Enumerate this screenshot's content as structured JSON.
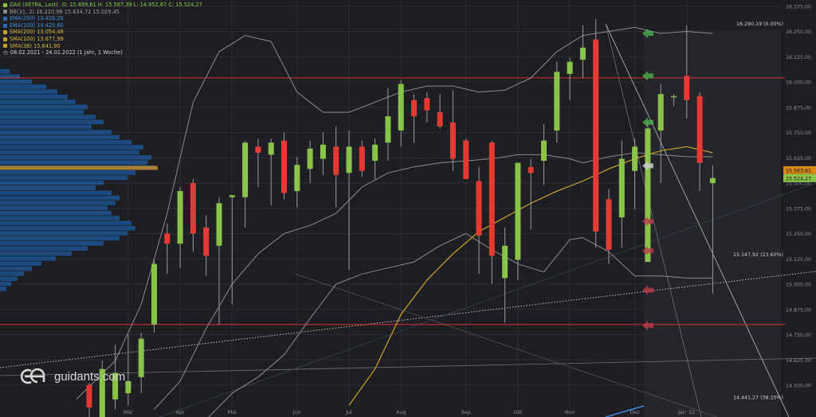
{
  "colors": {
    "background": "#1e1f23",
    "up": "#8bc34a",
    "down": "#e53935",
    "bollinger": "#8a8a8a",
    "sma200": "#c9a227",
    "grid": "#2c2e33",
    "resistance": "#d32f2f",
    "volume_profile": "#1e5aa0",
    "poc": "#b8862b"
  },
  "legend": {
    "title": "DAX (XETRA, Last)",
    "ohlc": "O: 15.499,61  H: 15.587,39  L: 14.952,67  C: 15.524,27",
    "bb": "BB(31, 2)  16.220,98  15.634,72  15.029,45",
    "ema200": "EMA(200)  13.426,26",
    "ema100": "EMA(100)  14.420,60",
    "sma200": "SMA(200)  13.054,48",
    "sma100": "SMA(100)  13.877,98",
    "sma38": "SMA(38)  15.641,90",
    "period": "08.02.2021 - 24.01.2022  (1 Jahr, 1 Woche)"
  },
  "logo_text": "guidants.com",
  "chart_data": {
    "type": "candlestick",
    "ylim": [
      14400,
      16350
    ],
    "y_ticks": [
      {
        "value": 16375,
        "label": "16.375,00"
      },
      {
        "value": 16250,
        "label": "16.250,00"
      },
      {
        "value": 16125,
        "label": "16.125,00"
      },
      {
        "value": 16000,
        "label": "16.000,00"
      },
      {
        "value": 15875,
        "label": "15.875,00"
      },
      {
        "value": 15750,
        "label": "15.750,00"
      },
      {
        "value": 15625,
        "label": "15.625,00"
      },
      {
        "value": 15500,
        "label": "15.500,00"
      },
      {
        "value": 15375,
        "label": "15.375,00"
      },
      {
        "value": 15250,
        "label": "15.250,00"
      },
      {
        "value": 15125,
        "label": "15.125,00"
      },
      {
        "value": 15000,
        "label": "15.000,00"
      },
      {
        "value": 14875,
        "label": "14.875,00"
      },
      {
        "value": 14750,
        "label": "14.750,00"
      },
      {
        "value": 14625,
        "label": "14.625,00"
      },
      {
        "value": 14500,
        "label": "14.500,00"
      }
    ],
    "x_labels": [
      {
        "index": 3,
        "label": "Mär"
      },
      {
        "index": 7,
        "label": "Apr"
      },
      {
        "index": 11,
        "label": "Mai"
      },
      {
        "index": 16,
        "label": "Jun"
      },
      {
        "index": 20,
        "label": "Jul"
      },
      {
        "index": 24,
        "label": "Aug"
      },
      {
        "index": 29,
        "label": "Sep"
      },
      {
        "index": 33,
        "label": "Okt"
      },
      {
        "index": 37,
        "label": "Nov"
      },
      {
        "index": 42,
        "label": "Dez"
      },
      {
        "index": 46,
        "label": "Jan '22"
      }
    ],
    "candles": [
      {
        "o": 14500,
        "h": 14510,
        "l": 14300,
        "c": 14390
      },
      {
        "o": 14340,
        "h": 14620,
        "l": 14300,
        "c": 14580
      },
      {
        "o": 14430,
        "h": 14700,
        "l": 14380,
        "c": 14560
      },
      {
        "o": 14460,
        "h": 14750,
        "l": 14400,
        "c": 14520
      },
      {
        "o": 14540,
        "h": 14760,
        "l": 14460,
        "c": 14730
      },
      {
        "o": 14800,
        "h": 15120,
        "l": 14760,
        "c": 15100
      },
      {
        "o": 15250,
        "h": 15300,
        "l": 15050,
        "c": 15200
      },
      {
        "o": 15200,
        "h": 15480,
        "l": 15080,
        "c": 15460
      },
      {
        "o": 15500,
        "h": 15520,
        "l": 15160,
        "c": 15250
      },
      {
        "o": 15280,
        "h": 15340,
        "l": 15040,
        "c": 15140
      },
      {
        "o": 15190,
        "h": 15430,
        "l": 14800,
        "c": 15400
      },
      {
        "o": 15430,
        "h": 15440,
        "l": 14900,
        "c": 15440
      },
      {
        "o": 15430,
        "h": 15710,
        "l": 15280,
        "c": 15700
      },
      {
        "o": 15680,
        "h": 15720,
        "l": 15480,
        "c": 15650
      },
      {
        "o": 15640,
        "h": 15720,
        "l": 15390,
        "c": 15700
      },
      {
        "o": 15710,
        "h": 15750,
        "l": 15420,
        "c": 15450
      },
      {
        "o": 15460,
        "h": 15630,
        "l": 15380,
        "c": 15590
      },
      {
        "o": 15570,
        "h": 15710,
        "l": 15500,
        "c": 15670
      },
      {
        "o": 15620,
        "h": 15750,
        "l": 15540,
        "c": 15690
      },
      {
        "o": 15680,
        "h": 15780,
        "l": 15380,
        "c": 15540
      },
      {
        "o": 15550,
        "h": 15760,
        "l": 15070,
        "c": 15680
      },
      {
        "o": 15680,
        "h": 15710,
        "l": 15530,
        "c": 15560
      },
      {
        "o": 15610,
        "h": 15720,
        "l": 15520,
        "c": 15690
      },
      {
        "o": 15700,
        "h": 15970,
        "l": 15610,
        "c": 15830
      },
      {
        "o": 15760,
        "h": 16010,
        "l": 15680,
        "c": 15990
      },
      {
        "o": 15910,
        "h": 15940,
        "l": 15700,
        "c": 15830
      },
      {
        "o": 15920,
        "h": 15950,
        "l": 15800,
        "c": 15860
      },
      {
        "o": 15850,
        "h": 15940,
        "l": 15770,
        "c": 15780
      },
      {
        "o": 15800,
        "h": 15960,
        "l": 15560,
        "c": 15620
      },
      {
        "o": 15710,
        "h": 15720,
        "l": 15520,
        "c": 15520
      },
      {
        "o": 15510,
        "h": 15580,
        "l": 15050,
        "c": 15240
      },
      {
        "o": 15700,
        "h": 15710,
        "l": 15000,
        "c": 15140
      },
      {
        "o": 15030,
        "h": 15280,
        "l": 14810,
        "c": 15190
      },
      {
        "o": 15120,
        "h": 15590,
        "l": 15020,
        "c": 15600
      },
      {
        "o": 15580,
        "h": 15620,
        "l": 15270,
        "c": 15550
      },
      {
        "o": 15610,
        "h": 15790,
        "l": 15490,
        "c": 15710
      },
      {
        "o": 15760,
        "h": 16100,
        "l": 15700,
        "c": 16050
      },
      {
        "o": 16040,
        "h": 16120,
        "l": 15910,
        "c": 16100
      },
      {
        "o": 16110,
        "h": 16280,
        "l": 16020,
        "c": 16170
      },
      {
        "o": 16210,
        "h": 16310,
        "l": 15180,
        "c": 15260
      },
      {
        "o": 15420,
        "h": 15470,
        "l": 15100,
        "c": 15170
      },
      {
        "o": 15330,
        "h": 15710,
        "l": 15180,
        "c": 15620
      },
      {
        "o": 15560,
        "h": 15720,
        "l": 15370,
        "c": 15680
      },
      {
        "o": 15110,
        "h": 15810,
        "l": 15110,
        "c": 15770
      },
      {
        "o": 15760,
        "h": 15990,
        "l": 15500,
        "c": 15940
      },
      {
        "o": 15930,
        "h": 15940,
        "l": 15880,
        "c": 15930
      },
      {
        "o": 16030,
        "h": 16280,
        "l": 15820,
        "c": 15910
      },
      {
        "o": 15930,
        "h": 15950,
        "l": 15460,
        "c": 15600
      },
      {
        "o": 15499.61,
        "h": 15587.39,
        "l": 14952.67,
        "c": 15524.27
      }
    ],
    "price_tags": [
      {
        "value": 15563.81,
        "label": "15.563,81",
        "color": "#d68910"
      },
      {
        "value": 15524.27,
        "label": "15.524,27",
        "color": "#8bc34a"
      }
    ],
    "fib_levels": [
      {
        "value": 16290.19,
        "label": "16.290,19 (0.00%)"
      },
      {
        "value": 15147.92,
        "label": "15.147,92 (23.60%)"
      },
      {
        "value": 14441.27,
        "label": "14.441,27 (38.20%)"
      }
    ],
    "horizontal_lines": [
      16020,
      14800
    ],
    "sma200_curve": [
      [
        20,
        14400
      ],
      [
        22,
        14580
      ],
      [
        24,
        14850
      ],
      [
        26,
        15020
      ],
      [
        28,
        15150
      ],
      [
        30,
        15260
      ],
      [
        32,
        15330
      ],
      [
        34,
        15400
      ],
      [
        36,
        15460
      ],
      [
        38,
        15510
      ],
      [
        40,
        15570
      ],
      [
        42,
        15620
      ],
      [
        44,
        15660
      ],
      [
        46,
        15680
      ],
      [
        48,
        15650
      ]
    ],
    "bb_upper": [
      [
        -1,
        14430
      ],
      [
        2,
        14620
      ],
      [
        4,
        14900
      ],
      [
        6,
        15350
      ],
      [
        8,
        15900
      ],
      [
        10,
        16150
      ],
      [
        12,
        16230
      ],
      [
        14,
        16200
      ],
      [
        16,
        15950
      ],
      [
        18,
        15850
      ],
      [
        20,
        15850
      ],
      [
        22,
        15900
      ],
      [
        24,
        15950
      ],
      [
        26,
        15980
      ],
      [
        28,
        15980
      ],
      [
        30,
        15950
      ],
      [
        32,
        15960
      ],
      [
        34,
        16020
      ],
      [
        36,
        16150
      ],
      [
        38,
        16230
      ],
      [
        40,
        16250
      ],
      [
        42,
        16270
      ],
      [
        44,
        16240
      ],
      [
        46,
        16250
      ],
      [
        48,
        16240
      ]
    ],
    "bb_middle": [
      [
        5,
        14380
      ],
      [
        7,
        14520
      ],
      [
        9,
        14780
      ],
      [
        11,
        15000
      ],
      [
        13,
        15150
      ],
      [
        15,
        15250
      ],
      [
        17,
        15290
      ],
      [
        19,
        15350
      ],
      [
        21,
        15480
      ],
      [
        23,
        15550
      ],
      [
        25,
        15580
      ],
      [
        27,
        15600
      ],
      [
        29,
        15610
      ],
      [
        31,
        15620
      ],
      [
        33,
        15640
      ],
      [
        35,
        15640
      ],
      [
        37,
        15620
      ],
      [
        38,
        15600
      ],
      [
        40,
        15630
      ],
      [
        42,
        15650
      ],
      [
        44,
        15640
      ],
      [
        46,
        15630
      ],
      [
        48,
        15630
      ]
    ],
    "bb_lower": [
      [
        9,
        14330
      ],
      [
        11,
        14460
      ],
      [
        13,
        14540
      ],
      [
        15,
        14650
      ],
      [
        17,
        14830
      ],
      [
        19,
        15000
      ],
      [
        21,
        15050
      ],
      [
        23,
        15080
      ],
      [
        25,
        15110
      ],
      [
        27,
        15190
      ],
      [
        29,
        15250
      ],
      [
        31,
        15170
      ],
      [
        33,
        15100
      ],
      [
        35,
        15060
      ],
      [
        37,
        15220
      ],
      [
        38,
        15230
      ],
      [
        40,
        15160
      ],
      [
        42,
        15040
      ],
      [
        44,
        15040
      ],
      [
        46,
        15030
      ],
      [
        48,
        15030
      ]
    ]
  }
}
